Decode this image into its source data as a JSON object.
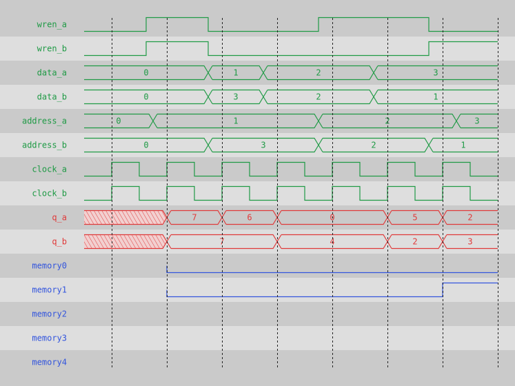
{
  "colors": {
    "input": "#1f9a45",
    "output": "#e03a3a",
    "memory": "#3355dd",
    "row_dark": "#cacaca",
    "row_light": "#dedede",
    "grid": "#222222"
  },
  "time": {
    "start": 0,
    "end": 15,
    "markers": [
      1,
      3,
      5,
      7,
      9,
      11,
      13,
      15
    ]
  },
  "signals": [
    {
      "name": "wren_a",
      "kind": "bit",
      "group": "input",
      "init": 0,
      "edges": [
        [
          2.25,
          1
        ],
        [
          4.5,
          0
        ],
        [
          8.5,
          1
        ],
        [
          12.5,
          0
        ]
      ]
    },
    {
      "name": "wren_b",
      "kind": "bit",
      "group": "input",
      "init": 0,
      "edges": [
        [
          2.25,
          1
        ],
        [
          4.5,
          0
        ],
        [
          12.5,
          1
        ]
      ]
    },
    {
      "name": "data_a",
      "kind": "bus",
      "group": "input",
      "segments": [
        [
          0,
          "0"
        ],
        [
          4.5,
          "1"
        ],
        [
          6.5,
          "2"
        ],
        [
          10.5,
          "3"
        ]
      ]
    },
    {
      "name": "data_b",
      "kind": "bus",
      "group": "input",
      "segments": [
        [
          0,
          "0"
        ],
        [
          4.5,
          "3"
        ],
        [
          6.5,
          "2"
        ],
        [
          10.5,
          "1"
        ]
      ]
    },
    {
      "name": "address_a",
      "kind": "bus",
      "group": "input",
      "segments": [
        [
          0,
          "0"
        ],
        [
          2.5,
          "1"
        ],
        [
          8.5,
          "2"
        ],
        [
          13.5,
          "3"
        ]
      ]
    },
    {
      "name": "address_b",
      "kind": "bus",
      "group": "input",
      "segments": [
        [
          0,
          "0"
        ],
        [
          4.5,
          "3"
        ],
        [
          8.5,
          "2"
        ],
        [
          12.5,
          "1"
        ]
      ]
    },
    {
      "name": "clock_a",
      "kind": "clock",
      "group": "input",
      "first_rise": 1,
      "period": 2
    },
    {
      "name": "clock_b",
      "kind": "clock",
      "group": "input",
      "first_rise": 1,
      "period": 2
    },
    {
      "name": "q_a",
      "kind": "bus",
      "group": "output",
      "segments": [
        [
          0,
          "X"
        ],
        [
          3,
          "7"
        ],
        [
          5,
          "6"
        ],
        [
          7,
          "0"
        ],
        [
          11,
          "5"
        ],
        [
          13,
          "2"
        ]
      ]
    },
    {
      "name": "q_b",
      "kind": "bus",
      "group": "output",
      "segments": [
        [
          0,
          "X"
        ],
        [
          3,
          "7"
        ],
        [
          7,
          "4"
        ],
        [
          11,
          "2"
        ],
        [
          13,
          "3"
        ]
      ]
    },
    {
      "name": "memory0",
      "kind": "bit",
      "group": "memory",
      "init": null,
      "edges": [
        [
          3,
          0
        ]
      ]
    },
    {
      "name": "memory1",
      "kind": "bit",
      "group": "memory",
      "init": null,
      "edges": [
        [
          3,
          0
        ],
        [
          13,
          1
        ]
      ]
    },
    {
      "name": "memory2",
      "kind": "bit",
      "group": "memory",
      "init": null,
      "edges": []
    },
    {
      "name": "memory3",
      "kind": "bit",
      "group": "memory",
      "init": null,
      "edges": []
    },
    {
      "name": "memory4",
      "kind": "bit",
      "group": "memory",
      "init": null,
      "edges": []
    }
  ]
}
